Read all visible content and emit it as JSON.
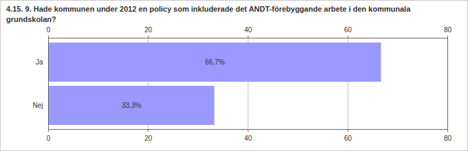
{
  "chart_data": {
    "type": "bar",
    "orientation": "horizontal",
    "title": "4.15. 9. Hade kommunen under 2012 en policy som inkluderade det ANDT-förebyggande arbete i den kommunala grundskolan?",
    "categories": [
      "Ja",
      "Nej"
    ],
    "values": [
      66.7,
      33.3
    ],
    "value_labels": [
      "66,7%",
      "33,3%"
    ],
    "color": "#9999ff",
    "xlim": [
      0,
      80
    ],
    "xticks": [
      0,
      20,
      40,
      60,
      80
    ],
    "grid": true,
    "data_labels": true
  }
}
